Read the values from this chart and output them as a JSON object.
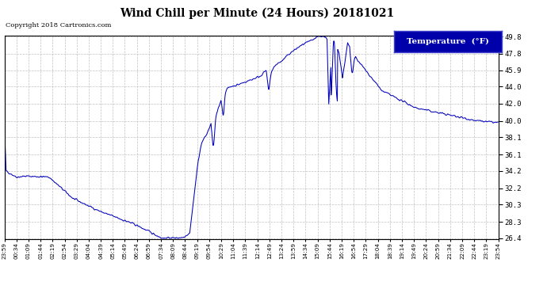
{
  "title": "Wind Chill per Minute (24 Hours) 20181021",
  "copyright": "Copyright 2018 Cartronics.com",
  "legend_label": "Temperature  (°F)",
  "line_color": "#0000BB",
  "background_color": "#ffffff",
  "plot_bg_color": "#ffffff",
  "grid_color": "#bbbbbb",
  "ylim": [
    26.4,
    49.8
  ],
  "yticks": [
    26.4,
    28.3,
    30.3,
    32.2,
    34.2,
    36.1,
    38.1,
    40.0,
    42.0,
    44.0,
    45.9,
    47.8,
    49.8
  ],
  "x_labels": [
    "23:59",
    "00:34",
    "01:09",
    "01:44",
    "02:19",
    "02:54",
    "03:29",
    "04:04",
    "04:39",
    "05:14",
    "05:49",
    "06:24",
    "06:59",
    "07:34",
    "08:09",
    "08:44",
    "09:19",
    "09:54",
    "10:29",
    "11:04",
    "11:39",
    "12:14",
    "12:49",
    "13:24",
    "13:59",
    "14:34",
    "15:09",
    "15:44",
    "16:19",
    "16:54",
    "17:29",
    "18:04",
    "18:39",
    "19:14",
    "19:49",
    "20:24",
    "20:59",
    "21:34",
    "22:09",
    "22:44",
    "23:19",
    "23:54"
  ],
  "key_t": [
    0,
    5,
    35,
    60,
    130,
    200,
    280,
    380,
    460,
    480,
    520,
    540,
    565,
    575,
    590,
    600,
    620,
    640,
    660,
    680,
    700,
    720,
    745,
    760,
    775,
    790,
    810,
    830,
    855,
    875,
    895,
    915,
    935,
    940,
    945,
    955,
    960,
    975,
    985,
    1000,
    1020,
    1060,
    1100,
    1150,
    1200,
    1260,
    1320,
    1380,
    1440
  ],
  "key_v": [
    39.5,
    34.2,
    33.5,
    33.6,
    33.5,
    31.0,
    29.5,
    28.0,
    26.4,
    26.4,
    26.5,
    27.0,
    35.5,
    37.5,
    38.5,
    39.5,
    41.0,
    43.5,
    44.0,
    44.2,
    44.5,
    44.8,
    45.2,
    45.8,
    45.5,
    46.5,
    47.0,
    47.8,
    48.5,
    49.0,
    49.3,
    49.8,
    49.8,
    49.5,
    42.0,
    49.0,
    49.2,
    48.0,
    45.0,
    49.0,
    47.5,
    45.5,
    43.5,
    42.5,
    41.5,
    41.0,
    40.5,
    40.0,
    39.8
  ]
}
